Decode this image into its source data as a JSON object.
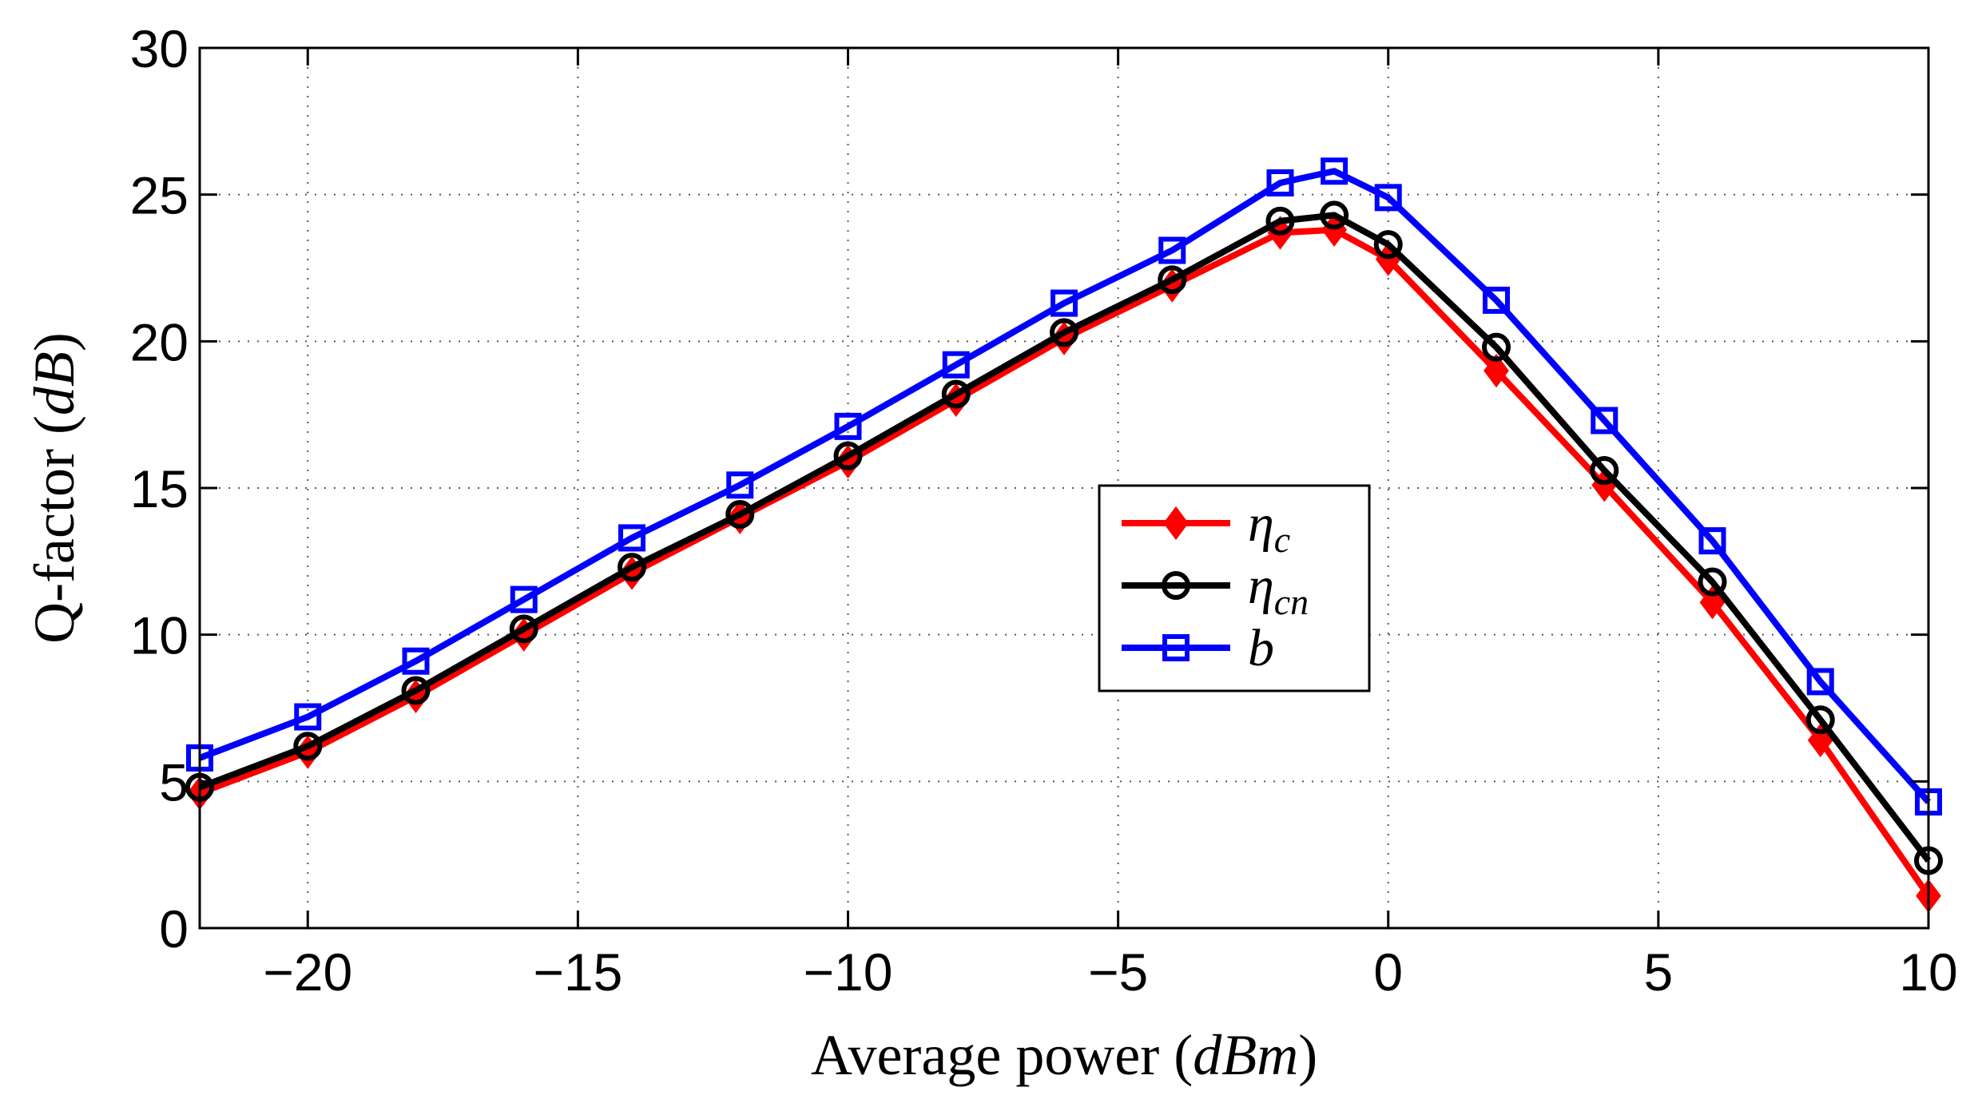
{
  "chart_data": {
    "type": "line",
    "title": "",
    "xlabel": "Average power (dBm)",
    "xlabel_text": "Average power (",
    "xlabel_unit": "dBm",
    "xlabel_close": ")",
    "ylabel": "Q-factor (dB)",
    "ylabel_text": "Q-factor (",
    "ylabel_unit": "dB",
    "ylabel_close": ")",
    "xlim": [
      -22,
      10
    ],
    "ylim": [
      0,
      30
    ],
    "xticks": [
      -20,
      -15,
      -10,
      -5,
      0,
      5,
      10
    ],
    "yticks": [
      0,
      5,
      10,
      15,
      20,
      25,
      30
    ],
    "xtick_labels": [
      "−20",
      "−15",
      "−10",
      "−5",
      "0",
      "5",
      "10"
    ],
    "ytick_labels": [
      "0",
      "5",
      "10",
      "15",
      "20",
      "25",
      "30"
    ],
    "grid": true,
    "legend_position": "center-right",
    "x": [
      -22,
      -20,
      -18,
      -16,
      -14,
      -12,
      -10,
      -8,
      -6,
      -4,
      -2,
      -1,
      0,
      2,
      4,
      6,
      8,
      10
    ],
    "series": [
      {
        "name": "ηc",
        "legend_base": "η",
        "legend_sub": "c",
        "color": "#ff0000",
        "marker": "diamond",
        "values": [
          4.6,
          6.0,
          7.9,
          10.0,
          12.1,
          14.0,
          15.9,
          18.0,
          20.1,
          21.9,
          23.7,
          23.8,
          22.8,
          19.0,
          15.1,
          11.1,
          6.4,
          1.1
        ]
      },
      {
        "name": "ηcn",
        "legend_base": "η",
        "legend_sub": "cn",
        "color": "#000000",
        "marker": "circle",
        "values": [
          4.8,
          6.2,
          8.1,
          10.2,
          12.3,
          14.1,
          16.1,
          18.2,
          20.3,
          22.1,
          24.1,
          24.3,
          23.3,
          19.8,
          15.6,
          11.8,
          7.1,
          2.3
        ]
      },
      {
        "name": "b",
        "legend_base": "b",
        "legend_sub": "",
        "color": "#0000ff",
        "marker": "square",
        "values": [
          5.8,
          7.2,
          9.1,
          11.2,
          13.3,
          15.1,
          17.1,
          19.2,
          21.3,
          23.1,
          25.4,
          25.8,
          24.9,
          21.4,
          17.3,
          13.2,
          8.4,
          4.3
        ]
      }
    ]
  }
}
